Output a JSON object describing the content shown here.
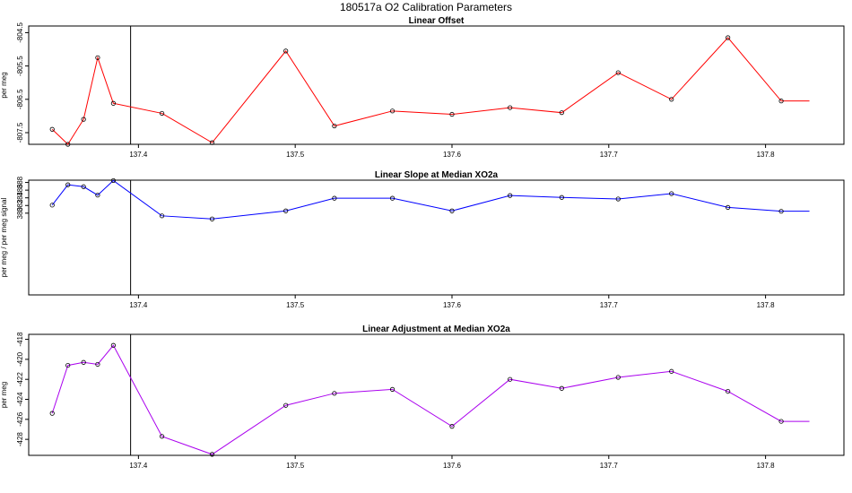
{
  "figure_title": "180517a   O2 Calibration Parameters",
  "chart_data": [
    {
      "type": "line",
      "title": "Linear Offset",
      "ylabel": "per meg",
      "xlabel": "",
      "color": "#ff0000",
      "xlim": [
        137.33,
        137.85
      ],
      "ylim": [
        -807.85,
        -804.3
      ],
      "x_ticks": [
        137.4,
        137.5,
        137.6,
        137.7,
        137.8
      ],
      "x_tick_labels": [
        "137.4",
        "137.5",
        "137.6",
        "137.7",
        "137.8"
      ],
      "y_ticks": [
        -807.5,
        -806.5,
        -805.5,
        -804.5
      ],
      "y_tick_labels": [
        "-807.5",
        "-806.5",
        "-805.5",
        "-804.5"
      ],
      "vline_x": 137.395,
      "x": [
        137.345,
        137.355,
        137.365,
        137.374,
        137.384,
        137.415,
        137.447,
        137.494,
        137.525,
        137.562,
        137.6,
        137.637,
        137.67,
        137.706,
        137.74,
        137.776,
        137.81
      ],
      "values": [
        -807.4,
        -807.85,
        -807.1,
        -805.25,
        -806.62,
        -806.92,
        -807.8,
        -805.05,
        -807.3,
        -806.85,
        -806.95,
        -806.75,
        -806.9,
        -805.7,
        -806.5,
        -804.65,
        -806.55
      ],
      "end_x": 137.828
    },
    {
      "type": "line",
      "title": "Linear Slope at Median XO2a",
      "ylabel": "per meg / per meg signal",
      "xlabel": "",
      "color": "#0000ff",
      "xlim": [
        137.33,
        137.85
      ],
      "ylim": [
        358.7,
        388.6
      ],
      "x_ticks": [
        137.4,
        137.5,
        137.6,
        137.7,
        137.8
      ],
      "x_tick_labels": [
        "137.4",
        "137.5",
        "137.6",
        "137.7",
        "137.8"
      ],
      "y_ticks": [
        380,
        382,
        384,
        386,
        388
      ],
      "y_tick_labels": [
        "380",
        "382",
        "384",
        "386",
        "388"
      ],
      "vline_x": 137.395,
      "x": [
        137.345,
        137.355,
        137.365,
        137.374,
        137.384,
        137.415,
        137.447,
        137.494,
        137.525,
        137.562,
        137.6,
        137.637,
        137.67,
        137.706,
        137.74,
        137.776,
        137.81
      ],
      "values": [
        382.1,
        387.4,
        386.9,
        384.7,
        388.5,
        379.3,
        378.5,
        380.6,
        383.9,
        383.9,
        380.6,
        384.6,
        384.1,
        383.7,
        385.1,
        381.5,
        380.5
      ],
      "end_x": 137.828
    },
    {
      "type": "line",
      "title": "Linear Adjustment at Median XO2a",
      "ylabel": "per meg",
      "xlabel": "",
      "color": "#aa00ee",
      "xlim": [
        137.33,
        137.85
      ],
      "ylim": [
        -429.6,
        -417.5
      ],
      "x_ticks": [
        137.4,
        137.5,
        137.6,
        137.7,
        137.8
      ],
      "x_tick_labels": [
        "137.4",
        "137.5",
        "137.6",
        "137.7",
        "137.8"
      ],
      "y_ticks": [
        -428,
        -426,
        -424,
        -422,
        -420,
        -418
      ],
      "y_tick_labels": [
        "-428",
        "-426",
        "-424",
        "-422",
        "-420",
        "-418"
      ],
      "vline_x": 137.395,
      "x": [
        137.345,
        137.355,
        137.365,
        137.374,
        137.384,
        137.415,
        137.447,
        137.494,
        137.525,
        137.562,
        137.6,
        137.637,
        137.67,
        137.706,
        137.74,
        137.776,
        137.81
      ],
      "values": [
        -425.4,
        -420.6,
        -420.3,
        -420.5,
        -418.6,
        -427.7,
        -429.5,
        -424.6,
        -423.4,
        -423,
        -426.7,
        -422,
        -422.9,
        -421.8,
        -421.2,
        -423.2,
        -426.2
      ],
      "end_x": 137.828
    }
  ]
}
